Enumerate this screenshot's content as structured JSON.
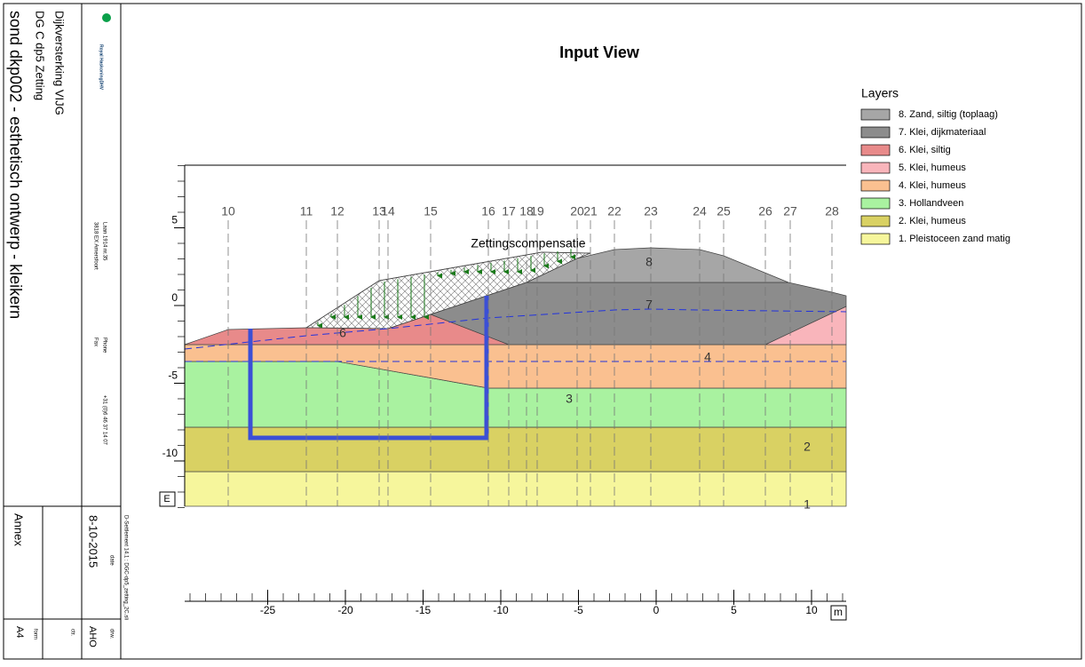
{
  "title": "Input View",
  "title_block": {
    "project": "Dijkversterking VIJG",
    "subject": "DG C dp5 Zetting",
    "drawing": "sond dkp002 - esthetisch ontwerp - kleikern",
    "logo": "Royal HaskoningDHV",
    "address1": "Laan 1914 nr.35",
    "address2": "3818 EX Amersfoort",
    "phone_label": "Phone",
    "fax_label": "Fax",
    "phone": "+31 (0)6 46 37 14 07",
    "file": "D-Settlement 14.1 : DGC-dp5_zetting_2C.sli",
    "date_label": "date",
    "date": "8-10-2015",
    "drw_label": "drw.",
    "drw": "AHO",
    "ctr_label": "ctr.",
    "annex": "Annex",
    "form_label": "form",
    "form": "A4"
  },
  "annotation": "Zettingscompensatie",
  "verticals": [
    10,
    11,
    12,
    13,
    14,
    15,
    16,
    17,
    18,
    19,
    20,
    21,
    22,
    23,
    24,
    25,
    26,
    27,
    28
  ],
  "layer_labels": [
    "8",
    "7",
    "6",
    "4",
    "3",
    "2",
    "1"
  ],
  "y_ticks": [
    5,
    0,
    -5,
    -10
  ],
  "x_ticks": [
    -25,
    -20,
    -15,
    -10,
    -5,
    0,
    5,
    10
  ],
  "x_unit": "m",
  "corner_box": "E",
  "legend": {
    "title": "Layers",
    "items": [
      {
        "label": "8. Zand, siltig (toplaag)",
        "color": "#a6a6a6"
      },
      {
        "label": "7. Klei, dijkmateriaal",
        "color": "#8c8c8c"
      },
      {
        "label": "6. Klei, siltig",
        "color": "#e88a8a"
      },
      {
        "label": "5. Klei, humeus",
        "color": "#f9b5bb"
      },
      {
        "label": "4. Klei, humeus",
        "color": "#fac090"
      },
      {
        "label": "3. Hollandveen",
        "color": "#a9f2a0"
      },
      {
        "label": "2. Klei, humeus",
        "color": "#d9d163"
      },
      {
        "label": "1. Pleistoceen zand matig",
        "color": "#f6f69c"
      }
    ]
  }
}
